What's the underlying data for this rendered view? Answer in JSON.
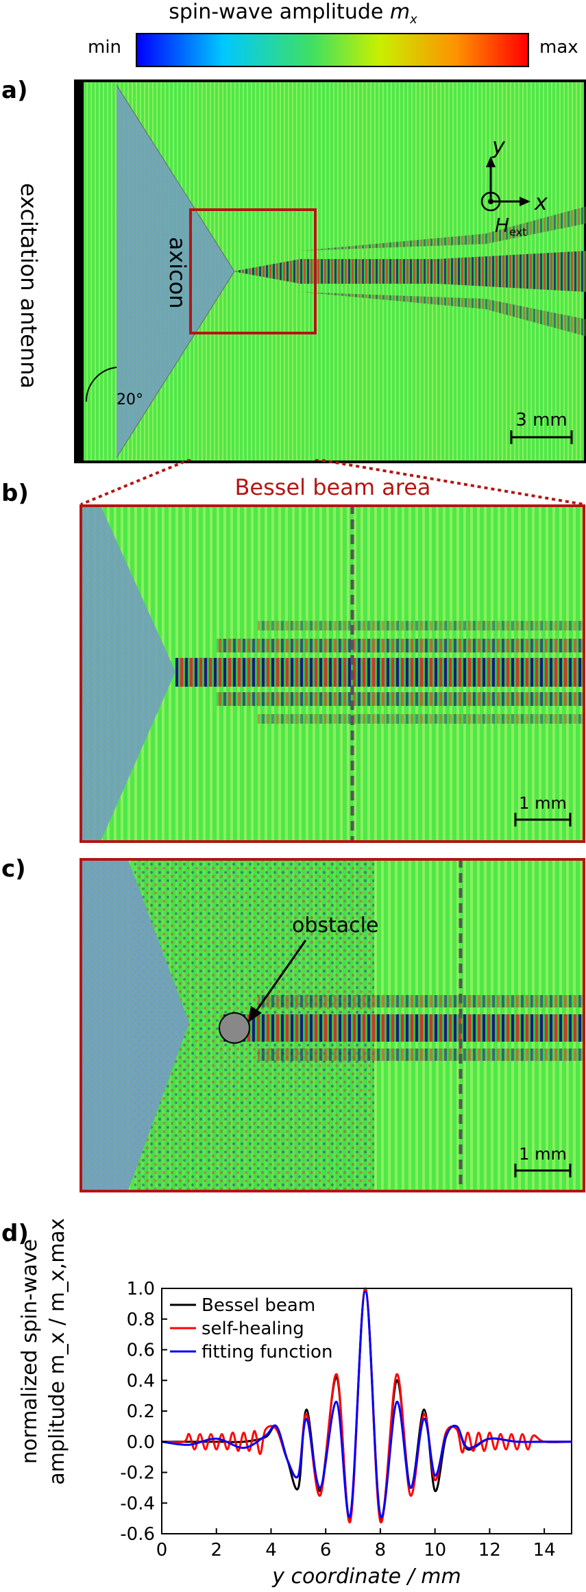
{
  "colorbar": {
    "title": "spin-wave amplitude",
    "title_var": "m",
    "title_sub": "x",
    "min_label": "min",
    "max_label": "max",
    "gradient_colors": [
      "#0000ff",
      "#00c8ff",
      "#40e060",
      "#c8f000",
      "#ff9000",
      "#ff0000"
    ]
  },
  "panel_a": {
    "letter": "a)",
    "antenna_label": "excitation antenna",
    "axicon_label": "axicon",
    "angle_label": "20°",
    "axis_y": "y",
    "axis_x": "x",
    "field_label": "H",
    "field_sub": "ext",
    "scalebar_label": "3 mm"
  },
  "panel_b": {
    "letter": "b)",
    "title": "Bessel beam area",
    "scalebar_label": "1 mm"
  },
  "panel_c": {
    "letter": "c)",
    "obstacle_label": "obstacle",
    "scalebar_label": "1 mm"
  },
  "panel_d": {
    "letter": "d)",
    "colors": {
      "bessel": "#000000",
      "self_healing": "#ff0000",
      "fit": "#0000ff"
    }
  },
  "chart_data": {
    "type": "line",
    "xlabel": "y coordinate / mm",
    "ylabel_line1": "normalized spin-wave",
    "ylabel_line2": "amplitude m_x / m_x,max",
    "xlim": [
      0,
      15
    ],
    "ylim": [
      -0.6,
      1.0
    ],
    "x_ticks": [
      0,
      2,
      4,
      6,
      8,
      10,
      12,
      14
    ],
    "y_ticks": [
      -0.6,
      -0.4,
      -0.2,
      0.0,
      0.2,
      0.4,
      0.6,
      0.8,
      1.0
    ],
    "y_tick_labels": [
      "-0.6",
      "-0.4",
      "-0.2",
      "0.0",
      "0.2",
      "0.4",
      "0.6",
      "0.8",
      "1.0"
    ],
    "legend_position": "top-left",
    "series": [
      {
        "name": "Bessel beam",
        "color": "#000000",
        "x": [
          0,
          1,
          2,
          3,
          3.8,
          4.2,
          4.6,
          5.0,
          5.3,
          5.8,
          6.4,
          6.9,
          7.45,
          8.0,
          8.6,
          9.1,
          9.6,
          10.0,
          10.4,
          10.8,
          11.2,
          12,
          13,
          14,
          15
        ],
        "y": [
          0,
          0,
          0,
          0,
          0.03,
          0.1,
          -0.12,
          -0.3,
          0.21,
          -0.32,
          0.42,
          -0.5,
          1.0,
          -0.5,
          0.4,
          -0.3,
          0.21,
          -0.32,
          0.03,
          0.1,
          -0.05,
          0.02,
          0,
          0,
          0
        ]
      },
      {
        "name": "self-healing",
        "color": "#ff0000",
        "x": [
          0,
          0.8,
          1.0,
          1.2,
          1.4,
          1.6,
          1.8,
          2.0,
          2.2,
          2.4,
          2.6,
          2.8,
          3.0,
          3.2,
          3.4,
          3.6,
          3.8,
          4.2,
          4.6,
          5.0,
          5.3,
          5.8,
          6.4,
          6.9,
          7.45,
          8.0,
          8.6,
          9.1,
          9.6,
          10.0,
          10.4,
          10.8,
          11.0,
          11.2,
          11.4,
          11.6,
          11.8,
          12.0,
          12.2,
          12.4,
          12.6,
          12.8,
          13.0,
          13.2,
          13.4,
          13.6,
          14.0,
          15
        ],
        "y": [
          0,
          0,
          0.05,
          -0.05,
          0.05,
          -0.05,
          0.05,
          -0.05,
          0.05,
          -0.05,
          0.06,
          -0.06,
          0.06,
          -0.06,
          0.07,
          -0.08,
          0.08,
          0.08,
          -0.12,
          -0.22,
          0.18,
          -0.35,
          0.44,
          -0.52,
          1.0,
          -0.52,
          0.44,
          -0.35,
          0.18,
          -0.25,
          0.06,
          0.08,
          -0.07,
          0.06,
          -0.06,
          0.06,
          -0.06,
          0.06,
          -0.05,
          0.05,
          -0.05,
          0.05,
          -0.05,
          0.05,
          -0.05,
          0.04,
          0,
          0
        ]
      },
      {
        "name": "fitting function",
        "color": "#0000ff",
        "x": [
          0,
          1,
          2,
          3,
          3.8,
          4.2,
          4.6,
          5.0,
          5.3,
          5.8,
          6.4,
          6.9,
          7.45,
          8.0,
          8.6,
          9.1,
          9.6,
          10.0,
          10.4,
          10.8,
          11.2,
          12,
          13,
          14,
          15
        ],
        "y": [
          0,
          -0.02,
          0.02,
          -0.04,
          0.04,
          0.1,
          -0.12,
          -0.22,
          0.15,
          -0.3,
          0.26,
          -0.48,
          0.98,
          -0.48,
          0.26,
          -0.3,
          0.15,
          -0.22,
          0.04,
          0.1,
          -0.04,
          0.02,
          0,
          0,
          0
        ]
      }
    ]
  }
}
